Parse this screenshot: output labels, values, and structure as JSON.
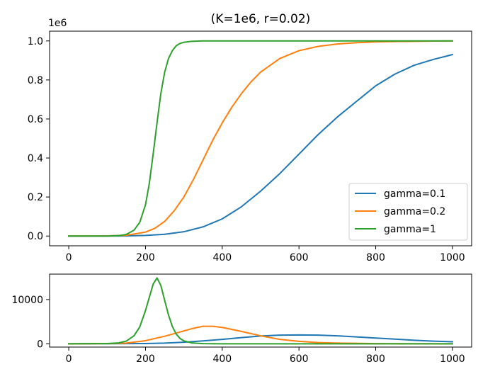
{
  "chart_data": [
    {
      "type": "line",
      "title": "(K=1e6, r=0.02)",
      "xlabel": "",
      "ylabel": "",
      "y_offset_label": "1e6",
      "xlim": [
        -50,
        1050
      ],
      "ylim": [
        -0.05,
        1.05
      ],
      "x_ticks": [
        0,
        200,
        400,
        600,
        800,
        1000
      ],
      "x_tick_labels": [
        "0",
        "200",
        "400",
        "600",
        "800",
        "1000"
      ],
      "y_ticks": [
        0.0,
        0.2,
        0.4,
        0.6,
        0.8,
        1.0
      ],
      "y_tick_labels": [
        "0.0",
        "0.2",
        "0.4",
        "0.6",
        "0.8",
        "1.0"
      ],
      "grid": false,
      "legend_position": "lower-right",
      "series": [
        {
          "name": "gamma=0.1",
          "color": "#1f77b4",
          "x": [
            0,
            50,
            100,
            150,
            200,
            250,
            300,
            350,
            400,
            450,
            500,
            550,
            600,
            650,
            700,
            750,
            800,
            850,
            900,
            950,
            1000
          ],
          "y": [
            0.0,
            0.0,
            0.0,
            0.001,
            0.003,
            0.009,
            0.022,
            0.047,
            0.088,
            0.15,
            0.23,
            0.32,
            0.42,
            0.52,
            0.61,
            0.69,
            0.77,
            0.83,
            0.875,
            0.905,
            0.93
          ]
        },
        {
          "name": "gamma=0.2",
          "color": "#ff7f0e",
          "x": [
            0,
            50,
            100,
            150,
            200,
            225,
            250,
            275,
            300,
            325,
            350,
            375,
            400,
            425,
            450,
            475,
            500,
            550,
            600,
            650,
            700,
            750,
            800,
            850,
            900,
            950,
            1000
          ],
          "y": [
            0.0,
            0.0,
            0.001,
            0.004,
            0.02,
            0.04,
            0.075,
            0.13,
            0.2,
            0.29,
            0.39,
            0.49,
            0.58,
            0.66,
            0.73,
            0.79,
            0.84,
            0.91,
            0.95,
            0.972,
            0.984,
            0.991,
            0.995,
            0.997,
            0.998,
            0.999,
            1.0
          ]
        },
        {
          "name": "gamma=1",
          "color": "#2ca02c",
          "x": [
            0,
            50,
            100,
            130,
            150,
            170,
            185,
            200,
            210,
            220,
            230,
            240,
            250,
            260,
            270,
            280,
            290,
            300,
            320,
            350,
            400,
            500,
            600,
            700,
            800,
            900,
            1000
          ],
          "y": [
            0.0,
            0.0,
            0.0,
            0.002,
            0.008,
            0.03,
            0.07,
            0.16,
            0.27,
            0.42,
            0.58,
            0.73,
            0.84,
            0.91,
            0.95,
            0.975,
            0.987,
            0.993,
            0.998,
            1.0,
            1.0,
            1.0,
            1.0,
            1.0,
            1.0,
            1.0,
            1.0
          ]
        }
      ]
    },
    {
      "type": "line",
      "title": "",
      "xlabel": "",
      "ylabel": "",
      "xlim": [
        -50,
        1050
      ],
      "ylim": [
        -750,
        15750
      ],
      "x_ticks": [
        0,
        200,
        400,
        600,
        800,
        1000
      ],
      "x_tick_labels": [
        "0",
        "200",
        "400",
        "600",
        "800",
        "1000"
      ],
      "y_ticks": [
        0,
        10000
      ],
      "y_tick_labels": [
        "0",
        "10000"
      ],
      "grid": false,
      "series": [
        {
          "name": "gamma=0.1",
          "color": "#1f77b4",
          "x": [
            0,
            100,
            200,
            250,
            300,
            350,
            400,
            450,
            500,
            550,
            600,
            650,
            700,
            750,
            800,
            850,
            900,
            950,
            1000
          ],
          "y": [
            0,
            10,
            60,
            150,
            350,
            650,
            1000,
            1400,
            1750,
            1950,
            2000,
            1950,
            1800,
            1550,
            1300,
            1050,
            800,
            600,
            450
          ]
        },
        {
          "name": "gamma=0.2",
          "color": "#ff7f0e",
          "x": [
            0,
            100,
            150,
            200,
            250,
            300,
            325,
            350,
            375,
            400,
            450,
            500,
            550,
            600,
            650,
            700,
            800,
            900,
            1000
          ],
          "y": [
            0,
            30,
            150,
            700,
            1700,
            2900,
            3500,
            3950,
            3950,
            3700,
            2800,
            1800,
            1000,
            550,
            280,
            150,
            40,
            10,
            0
          ]
        },
        {
          "name": "gamma=1",
          "color": "#2ca02c",
          "x": [
            0,
            100,
            130,
            150,
            170,
            185,
            200,
            210,
            220,
            230,
            240,
            250,
            260,
            270,
            280,
            290,
            300,
            320,
            350,
            400,
            500,
            1000
          ],
          "y": [
            0,
            50,
            200,
            600,
            1800,
            3800,
            7500,
            10500,
            13500,
            14900,
            13200,
            9800,
            6500,
            3900,
            2200,
            1200,
            650,
            200,
            40,
            0,
            0,
            0
          ]
        }
      ]
    }
  ]
}
